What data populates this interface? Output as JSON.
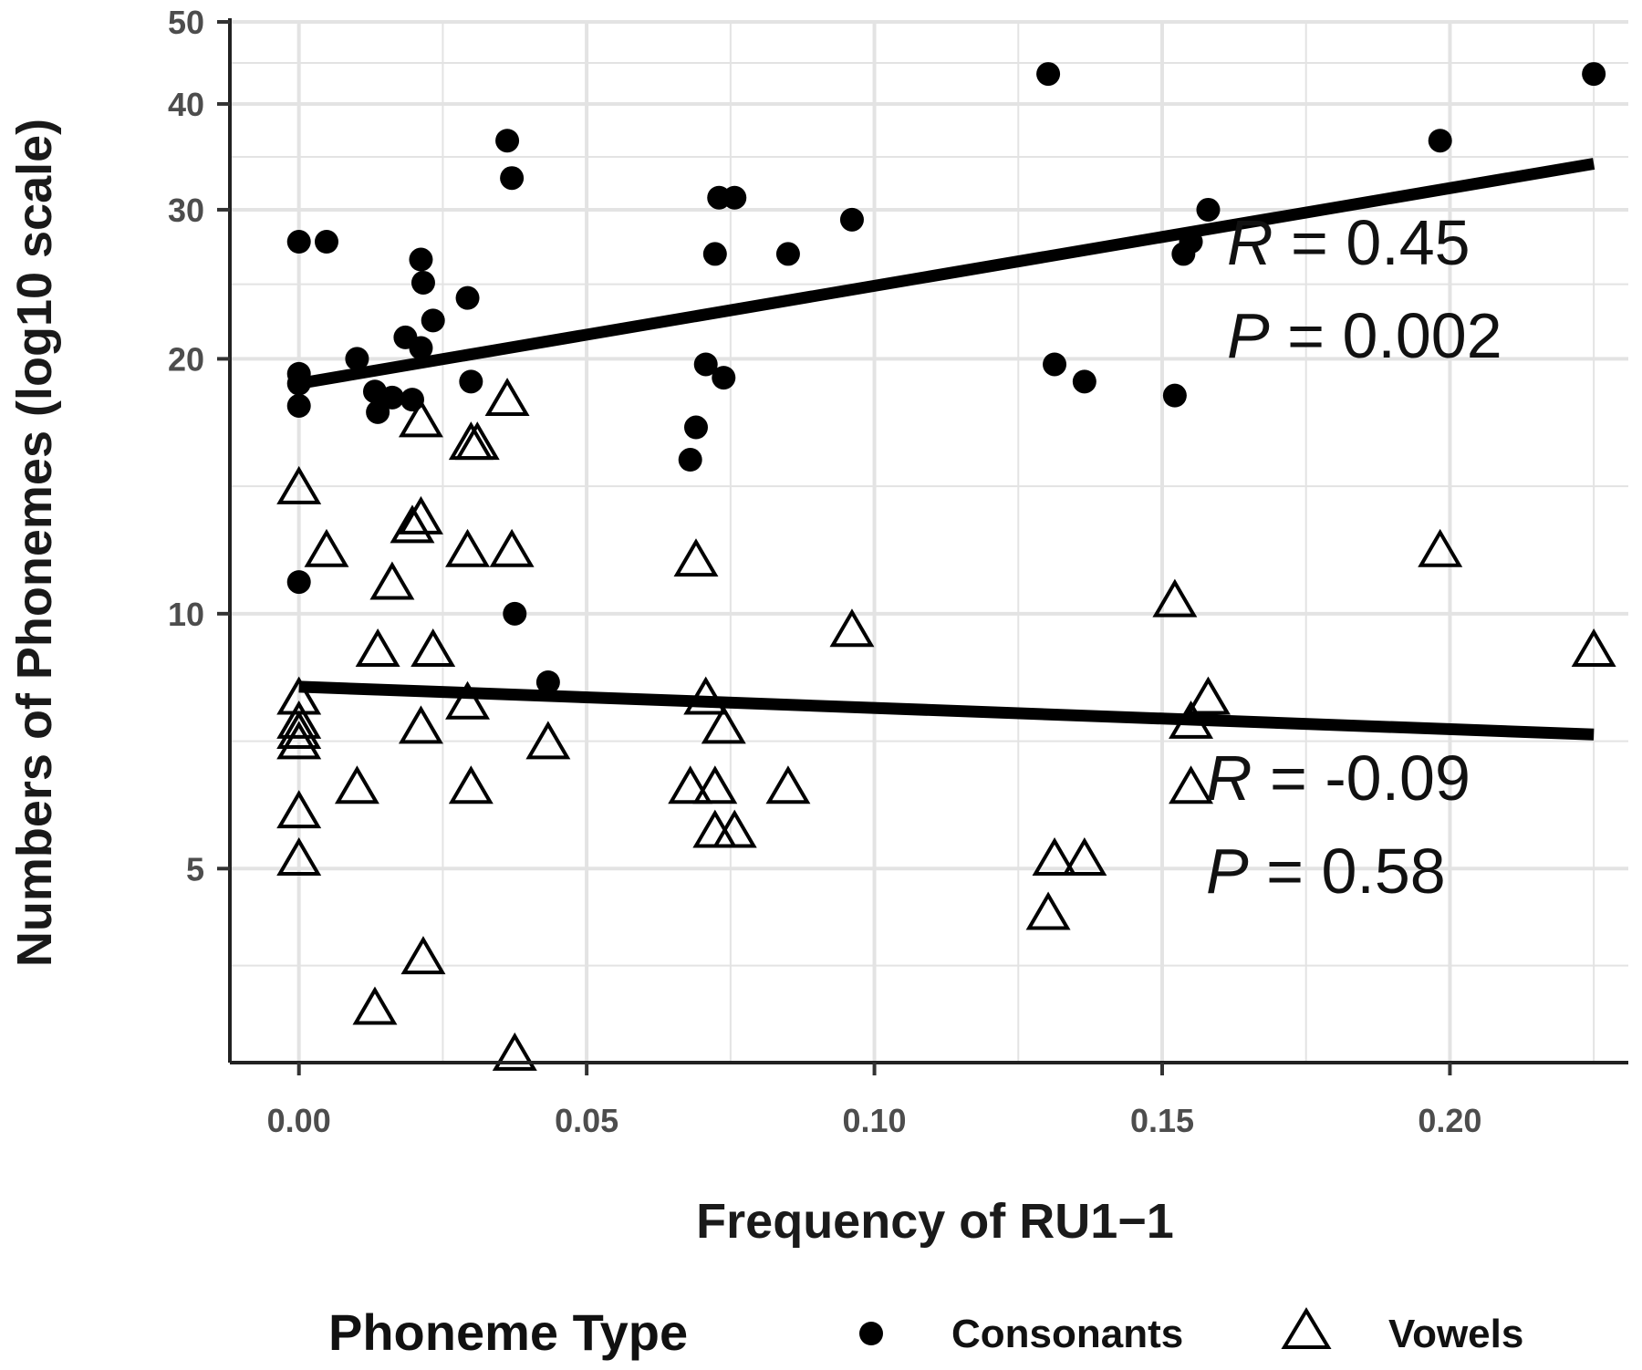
{
  "chart_data": {
    "type": "scatter",
    "xlabel": "Frequency of RU1−1",
    "ylabel": "Numbers of Phonemes (log10 scale)",
    "x_scale": "linear",
    "y_scale": "log10",
    "xlim": [
      -0.012,
      0.231
    ],
    "ylim": [
      2.95,
      50
    ],
    "x_ticks": [
      0.0,
      0.05,
      0.1,
      0.15,
      0.2
    ],
    "x_tick_labels": [
      "0.00",
      "0.05",
      "0.10",
      "0.15",
      "0.20"
    ],
    "y_ticks": [
      5,
      10,
      20,
      30,
      40,
      50
    ],
    "y_tick_labels": [
      "5",
      "10",
      "20",
      "30",
      "40",
      "50"
    ],
    "grid": true,
    "legend": {
      "title": "Phoneme Type",
      "position": "bottom",
      "entries": [
        {
          "label": "Consonants",
          "marker": "filled-circle"
        },
        {
          "label": "Vowels",
          "marker": "open-triangle"
        }
      ]
    },
    "series": [
      {
        "name": "Consonants",
        "marker": "filled-circle",
        "color": "#000000",
        "points": [
          [
            0.0,
            27.5
          ],
          [
            0.0,
            19.2
          ],
          [
            0.0,
            18.7
          ],
          [
            0.0,
            17.6
          ],
          [
            0.0,
            10.9
          ],
          [
            0.0048,
            27.5
          ],
          [
            0.0101,
            20.0
          ],
          [
            0.0132,
            18.3
          ],
          [
            0.0137,
            17.3
          ],
          [
            0.0162,
            18.0
          ],
          [
            0.0185,
            21.2
          ],
          [
            0.0197,
            17.9
          ],
          [
            0.0212,
            26.2
          ],
          [
            0.0212,
            20.6
          ],
          [
            0.0216,
            24.6
          ],
          [
            0.0233,
            22.2
          ],
          [
            0.0293,
            23.6
          ],
          [
            0.0299,
            18.8
          ],
          [
            0.0362,
            36.2
          ],
          [
            0.037,
            32.7
          ],
          [
            0.0375,
            10.0
          ],
          [
            0.0433,
            8.3
          ],
          [
            0.068,
            15.2
          ],
          [
            0.069,
            16.6
          ],
          [
            0.0707,
            19.7
          ],
          [
            0.0723,
            26.6
          ],
          [
            0.073,
            31.0
          ],
          [
            0.0738,
            19.0
          ],
          [
            0.0757,
            31.0
          ],
          [
            0.085,
            26.6
          ],
          [
            0.0961,
            29.2
          ],
          [
            0.1302,
            43.4
          ],
          [
            0.1313,
            19.7
          ],
          [
            0.1365,
            18.8
          ],
          [
            0.1522,
            18.1
          ],
          [
            0.1537,
            26.6
          ],
          [
            0.155,
            27.5
          ],
          [
            0.158,
            30.0
          ],
          [
            0.1983,
            36.2
          ],
          [
            0.225,
            43.4
          ]
        ]
      },
      {
        "name": "Vowels",
        "marker": "open-triangle",
        "color": "#000000",
        "points": [
          [
            0.0,
            14.0
          ],
          [
            0.0,
            7.9
          ],
          [
            0.0,
            7.4
          ],
          [
            0.0,
            7.2
          ],
          [
            0.0,
            7.0
          ],
          [
            0.0,
            5.8
          ],
          [
            0.0,
            5.1
          ],
          [
            0.0048,
            11.8
          ],
          [
            0.0101,
            6.2
          ],
          [
            0.0132,
            3.4
          ],
          [
            0.0137,
            9.0
          ],
          [
            0.0162,
            10.8
          ],
          [
            0.0197,
            12.6
          ],
          [
            0.0212,
            12.9
          ],
          [
            0.0212,
            7.3
          ],
          [
            0.0216,
            3.9
          ],
          [
            0.0212,
            16.8
          ],
          [
            0.0233,
            9.0
          ],
          [
            0.0293,
            7.8
          ],
          [
            0.0293,
            11.8
          ],
          [
            0.0299,
            6.2
          ],
          [
            0.0299,
            15.8
          ],
          [
            0.031,
            15.8
          ],
          [
            0.0362,
            17.8
          ],
          [
            0.037,
            11.8
          ],
          [
            0.0375,
            3.0
          ],
          [
            0.0433,
            7.0
          ],
          [
            0.068,
            6.2
          ],
          [
            0.069,
            11.5
          ],
          [
            0.0707,
            7.9
          ],
          [
            0.0723,
            6.2
          ],
          [
            0.0723,
            5.5
          ],
          [
            0.0738,
            7.3
          ],
          [
            0.0757,
            5.5
          ],
          [
            0.085,
            6.2
          ],
          [
            0.0961,
            9.5
          ],
          [
            0.1302,
            4.4
          ],
          [
            0.1313,
            5.1
          ],
          [
            0.1365,
            5.1
          ],
          [
            0.1522,
            10.3
          ],
          [
            0.155,
            6.2
          ],
          [
            0.155,
            7.4
          ],
          [
            0.158,
            7.9
          ],
          [
            0.1983,
            11.8
          ],
          [
            0.225,
            9.0
          ]
        ]
      }
    ],
    "trend_lines": [
      {
        "series": "Consonants",
        "x": [
          0.0,
          0.225
        ],
        "y": [
          18.7,
          34.0
        ]
      },
      {
        "series": "Vowels",
        "x": [
          0.0,
          0.225
        ],
        "y": [
          8.2,
          7.2
        ]
      }
    ],
    "annotations": [
      {
        "series": "Consonants",
        "r_symbol": "R",
        "r_text": " = 0.45",
        "p_symbol": "P",
        "p_text": " = 0.002"
      },
      {
        "series": "Vowels",
        "r_symbol": "R",
        "r_text": " = -0.09",
        "p_symbol": "P",
        "p_text": " = 0.58"
      }
    ]
  }
}
